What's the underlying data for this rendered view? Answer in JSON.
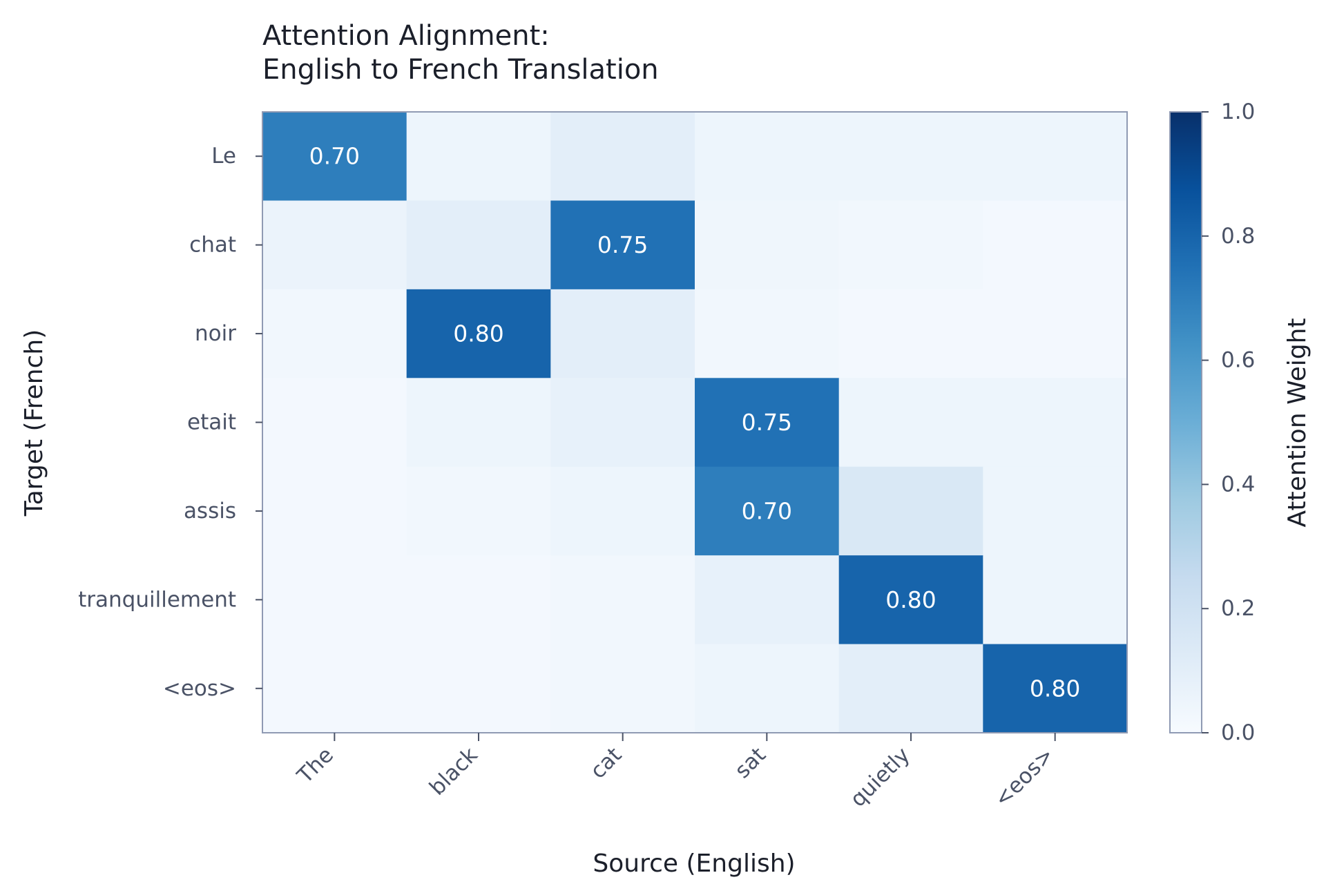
{
  "chart_data": {
    "type": "heatmap",
    "title_lines": [
      "Attention Alignment:",
      "English to French Translation"
    ],
    "xlabel": "Source (English)",
    "ylabel": "Target (French)",
    "x_categories": [
      "The",
      "black",
      "cat",
      "sat",
      "quietly",
      "<eos>"
    ],
    "y_categories": [
      "Le",
      "chat",
      "noir",
      "etait",
      "assis",
      "tranquillement",
      "<eos>"
    ],
    "values": [
      [
        0.7,
        0.05,
        0.1,
        0.05,
        0.05,
        0.05
      ],
      [
        0.06,
        0.1,
        0.75,
        0.04,
        0.03,
        0.02
      ],
      [
        0.03,
        0.8,
        0.1,
        0.03,
        0.02,
        0.02
      ],
      [
        0.02,
        0.05,
        0.08,
        0.75,
        0.05,
        0.05
      ],
      [
        0.02,
        0.03,
        0.05,
        0.7,
        0.15,
        0.05
      ],
      [
        0.02,
        0.02,
        0.03,
        0.08,
        0.8,
        0.05
      ],
      [
        0.02,
        0.02,
        0.03,
        0.05,
        0.1,
        0.8
      ]
    ],
    "annotated_cells": [
      {
        "row": 0,
        "col": 0,
        "label": "0.70"
      },
      {
        "row": 1,
        "col": 2,
        "label": "0.75"
      },
      {
        "row": 2,
        "col": 1,
        "label": "0.80"
      },
      {
        "row": 3,
        "col": 3,
        "label": "0.75"
      },
      {
        "row": 4,
        "col": 3,
        "label": "0.70"
      },
      {
        "row": 5,
        "col": 4,
        "label": "0.80"
      },
      {
        "row": 6,
        "col": 5,
        "label": "0.80"
      }
    ],
    "colormap": "Blues",
    "vmin": 0.0,
    "vmax": 1.0,
    "colorbar": {
      "label": "Attention Weight",
      "ticks": [
        "0.0",
        "0.2",
        "0.4",
        "0.6",
        "0.8",
        "1.0"
      ]
    },
    "grid": false
  }
}
